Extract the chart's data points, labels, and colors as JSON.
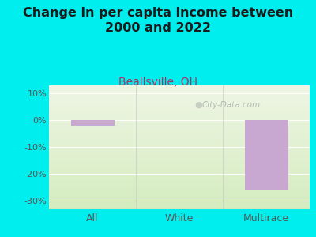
{
  "title": "Change in per capita income between\n2000 and 2022",
  "subtitle": "Beallsville, OH",
  "categories": [
    "All",
    "White",
    "Multirace"
  ],
  "values": [
    -2.0,
    0.0,
    -26.0
  ],
  "bar_color": "#c8a8d0",
  "ylim": [
    -33,
    13
  ],
  "yticks": [
    10,
    0,
    -10,
    -20,
    -30
  ],
  "ytick_labels": [
    "10%",
    "0%",
    "-10%",
    "-20%",
    "-30%"
  ],
  "background_outer": "#00EEEE",
  "plot_bg_top": "#eef5e4",
  "plot_bg_bottom": "#d4ecbf",
  "title_color": "#1a1a1a",
  "subtitle_color": "#b03060",
  "tick_label_color": "#555555",
  "watermark": "City-Data.com",
  "title_fontsize": 11.5,
  "subtitle_fontsize": 10,
  "grid_color": "#dddddd"
}
